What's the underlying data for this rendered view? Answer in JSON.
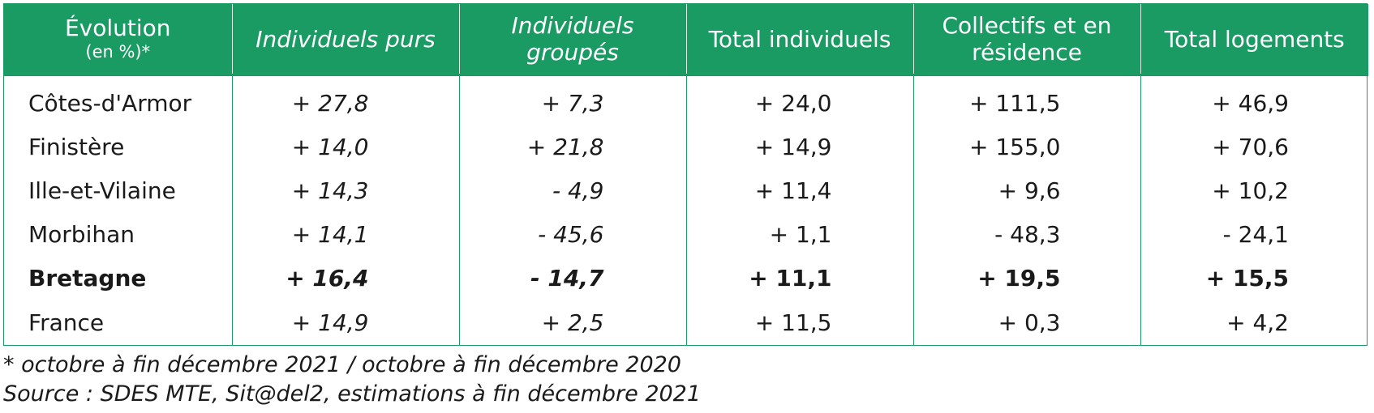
{
  "table": {
    "header": {
      "row_header": "Évolution",
      "row_header_sub": "(en %)*",
      "columns": [
        "Individuels purs",
        "Individuels groupés",
        "Total individuels",
        "Collectifs et en résidence",
        "Total logements"
      ]
    },
    "rows": [
      {
        "label": "Côtes-d'Armor",
        "values": [
          "+ 27,8",
          "+ 7,3",
          "+ 24,0",
          "+ 111,5",
          "+ 46,9"
        ]
      },
      {
        "label": "Finistère",
        "values": [
          "+ 14,0",
          "+ 21,8",
          "+ 14,9",
          "+ 155,0",
          "+ 70,6"
        ]
      },
      {
        "label": "Ille-et-Vilaine",
        "values": [
          "+ 14,3",
          "- 4,9",
          "+ 11,4",
          "+ 9,6",
          "+ 10,2"
        ]
      },
      {
        "label": "Morbihan",
        "values": [
          "+ 14,1",
          "- 45,6",
          "+ 1,1",
          "- 48,3",
          "- 24,1"
        ]
      },
      {
        "label": "Bretagne",
        "values": [
          "+ 16,4",
          "- 14,7",
          "+ 11,1",
          "+ 19,5",
          "+ 15,5"
        ]
      },
      {
        "label": "France",
        "values": [
          "+ 14,9",
          "+ 2,5",
          "+ 11,5",
          "+ 0,3",
          "+ 4,2"
        ]
      }
    ]
  },
  "notes": {
    "footnote": "* octobre à fin décembre 2021 / octobre à fin décembre 2020",
    "source": "Source : SDES MTE, Sit@del2, estimations à fin décembre 2021"
  },
  "colors": {
    "header_bg": "#1a9b64",
    "header_text": "#ffffff",
    "grid": "#1a9b64"
  }
}
